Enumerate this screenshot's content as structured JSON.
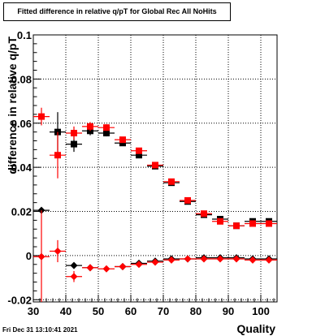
{
  "title": "Fitted difference in relative q/pT for Global Rec All NoHits",
  "timestamp": "Fri Dec 31 13:10:41 2021",
  "chart_data": {
    "type": "scatter",
    "title": "Fitted difference in relative q/pT for Global Rec All NoHits",
    "xlabel": "Quality",
    "ylabel": "difference in relative q/pT",
    "xlim": [
      30,
      105
    ],
    "ylim": [
      -0.021,
      0.1
    ],
    "x_ticks": [
      "30",
      "40",
      "50",
      "60",
      "70",
      "80",
      "90",
      "100"
    ],
    "y_ticks": [
      "-0.02",
      "0",
      "0.02",
      "0.04",
      "0.06",
      "0.08",
      "0.1"
    ],
    "grid": true,
    "series": [
      {
        "color": "#000000",
        "marker": "square",
        "points": [
          {
            "x": 37.5,
            "y": 0.056,
            "err": 0.009
          },
          {
            "x": 42.5,
            "y": 0.0505,
            "err": 0.0035
          },
          {
            "x": 47.5,
            "y": 0.0565,
            "err": 0.002
          },
          {
            "x": 52.5,
            "y": 0.0555,
            "err": 0.0015
          },
          {
            "x": 57.5,
            "y": 0.051,
            "err": 0.001
          },
          {
            "x": 62.5,
            "y": 0.0455,
            "err": 0.001
          },
          {
            "x": 67.5,
            "y": 0.0405,
            "err": 0.001
          },
          {
            "x": 72.5,
            "y": 0.033,
            "err": 0.0008
          },
          {
            "x": 77.5,
            "y": 0.0245,
            "err": 0.0007
          },
          {
            "x": 82.5,
            "y": 0.0185,
            "err": 0.0006
          },
          {
            "x": 87.5,
            "y": 0.0165,
            "err": 0.0006
          },
          {
            "x": 92.5,
            "y": 0.0135,
            "err": 0.0006
          },
          {
            "x": 97.5,
            "y": 0.0155,
            "err": 0.0006
          },
          {
            "x": 102.5,
            "y": 0.0155,
            "err": 0.0006
          }
        ]
      },
      {
        "color": "#ff0000",
        "marker": "square",
        "points": [
          {
            "x": 32.5,
            "y": 0.063,
            "err": 0.004
          },
          {
            "x": 37.5,
            "y": 0.0455,
            "err": 0.0105
          },
          {
            "x": 42.5,
            "y": 0.0555,
            "err": 0.003
          },
          {
            "x": 47.5,
            "y": 0.0585,
            "err": 0.002
          },
          {
            "x": 52.5,
            "y": 0.058,
            "err": 0.0015
          },
          {
            "x": 57.5,
            "y": 0.0525,
            "err": 0.001
          },
          {
            "x": 62.5,
            "y": 0.0475,
            "err": 0.001
          },
          {
            "x": 67.5,
            "y": 0.041,
            "err": 0.001
          },
          {
            "x": 72.5,
            "y": 0.0335,
            "err": 0.0008
          },
          {
            "x": 77.5,
            "y": 0.025,
            "err": 0.0007
          },
          {
            "x": 82.5,
            "y": 0.019,
            "err": 0.0006
          },
          {
            "x": 87.5,
            "y": 0.0155,
            "err": 0.0006
          },
          {
            "x": 92.5,
            "y": 0.0135,
            "err": 0.0006
          },
          {
            "x": 97.5,
            "y": 0.0145,
            "err": 0.0006
          },
          {
            "x": 102.5,
            "y": 0.0145,
            "err": 0.0006
          }
        ]
      },
      {
        "color": "#000000",
        "marker": "diamond",
        "points": [
          {
            "x": 32.5,
            "y": 0.0205,
            "err": 0.0
          },
          {
            "x": 42.5,
            "y": -0.0045,
            "err": 0.001
          },
          {
            "x": 47.5,
            "y": -0.0055,
            "err": 0.0008
          },
          {
            "x": 57.5,
            "y": -0.005,
            "err": 0.0006
          },
          {
            "x": 62.5,
            "y": -0.0035,
            "err": 0.0005
          },
          {
            "x": 67.5,
            "y": -0.0025,
            "err": 0.0005
          },
          {
            "x": 72.5,
            "y": -0.0015,
            "err": 0.0004
          },
          {
            "x": 77.5,
            "y": -0.0015,
            "err": 0.0004
          },
          {
            "x": 82.5,
            "y": -0.001,
            "err": 0.0004
          },
          {
            "x": 87.5,
            "y": -0.001,
            "err": 0.0004
          },
          {
            "x": 92.5,
            "y": -0.001,
            "err": 0.0004
          },
          {
            "x": 97.5,
            "y": -0.0015,
            "err": 0.0004
          },
          {
            "x": 102.5,
            "y": -0.0015,
            "err": 0.0004
          }
        ]
      },
      {
        "color": "#ff0000",
        "marker": "diamond",
        "points": [
          {
            "x": 32.5,
            "y": -0.0005,
            "err": 0.021
          },
          {
            "x": 37.5,
            "y": 0.002,
            "err": 0.005
          },
          {
            "x": 42.5,
            "y": -0.0095,
            "err": 0.0025
          },
          {
            "x": 47.5,
            "y": -0.0055,
            "err": 0.0012
          },
          {
            "x": 52.5,
            "y": -0.006,
            "err": 0.001
          },
          {
            "x": 57.5,
            "y": -0.005,
            "err": 0.0008
          },
          {
            "x": 62.5,
            "y": -0.004,
            "err": 0.0006
          },
          {
            "x": 67.5,
            "y": -0.003,
            "err": 0.0005
          },
          {
            "x": 72.5,
            "y": -0.002,
            "err": 0.0005
          },
          {
            "x": 77.5,
            "y": -0.0015,
            "err": 0.0004
          },
          {
            "x": 82.5,
            "y": -0.0015,
            "err": 0.0004
          },
          {
            "x": 87.5,
            "y": -0.0015,
            "err": 0.0004
          },
          {
            "x": 92.5,
            "y": -0.0015,
            "err": 0.0004
          },
          {
            "x": 97.5,
            "y": -0.002,
            "err": 0.0004
          },
          {
            "x": 102.5,
            "y": -0.002,
            "err": 0.0004
          }
        ]
      }
    ]
  }
}
